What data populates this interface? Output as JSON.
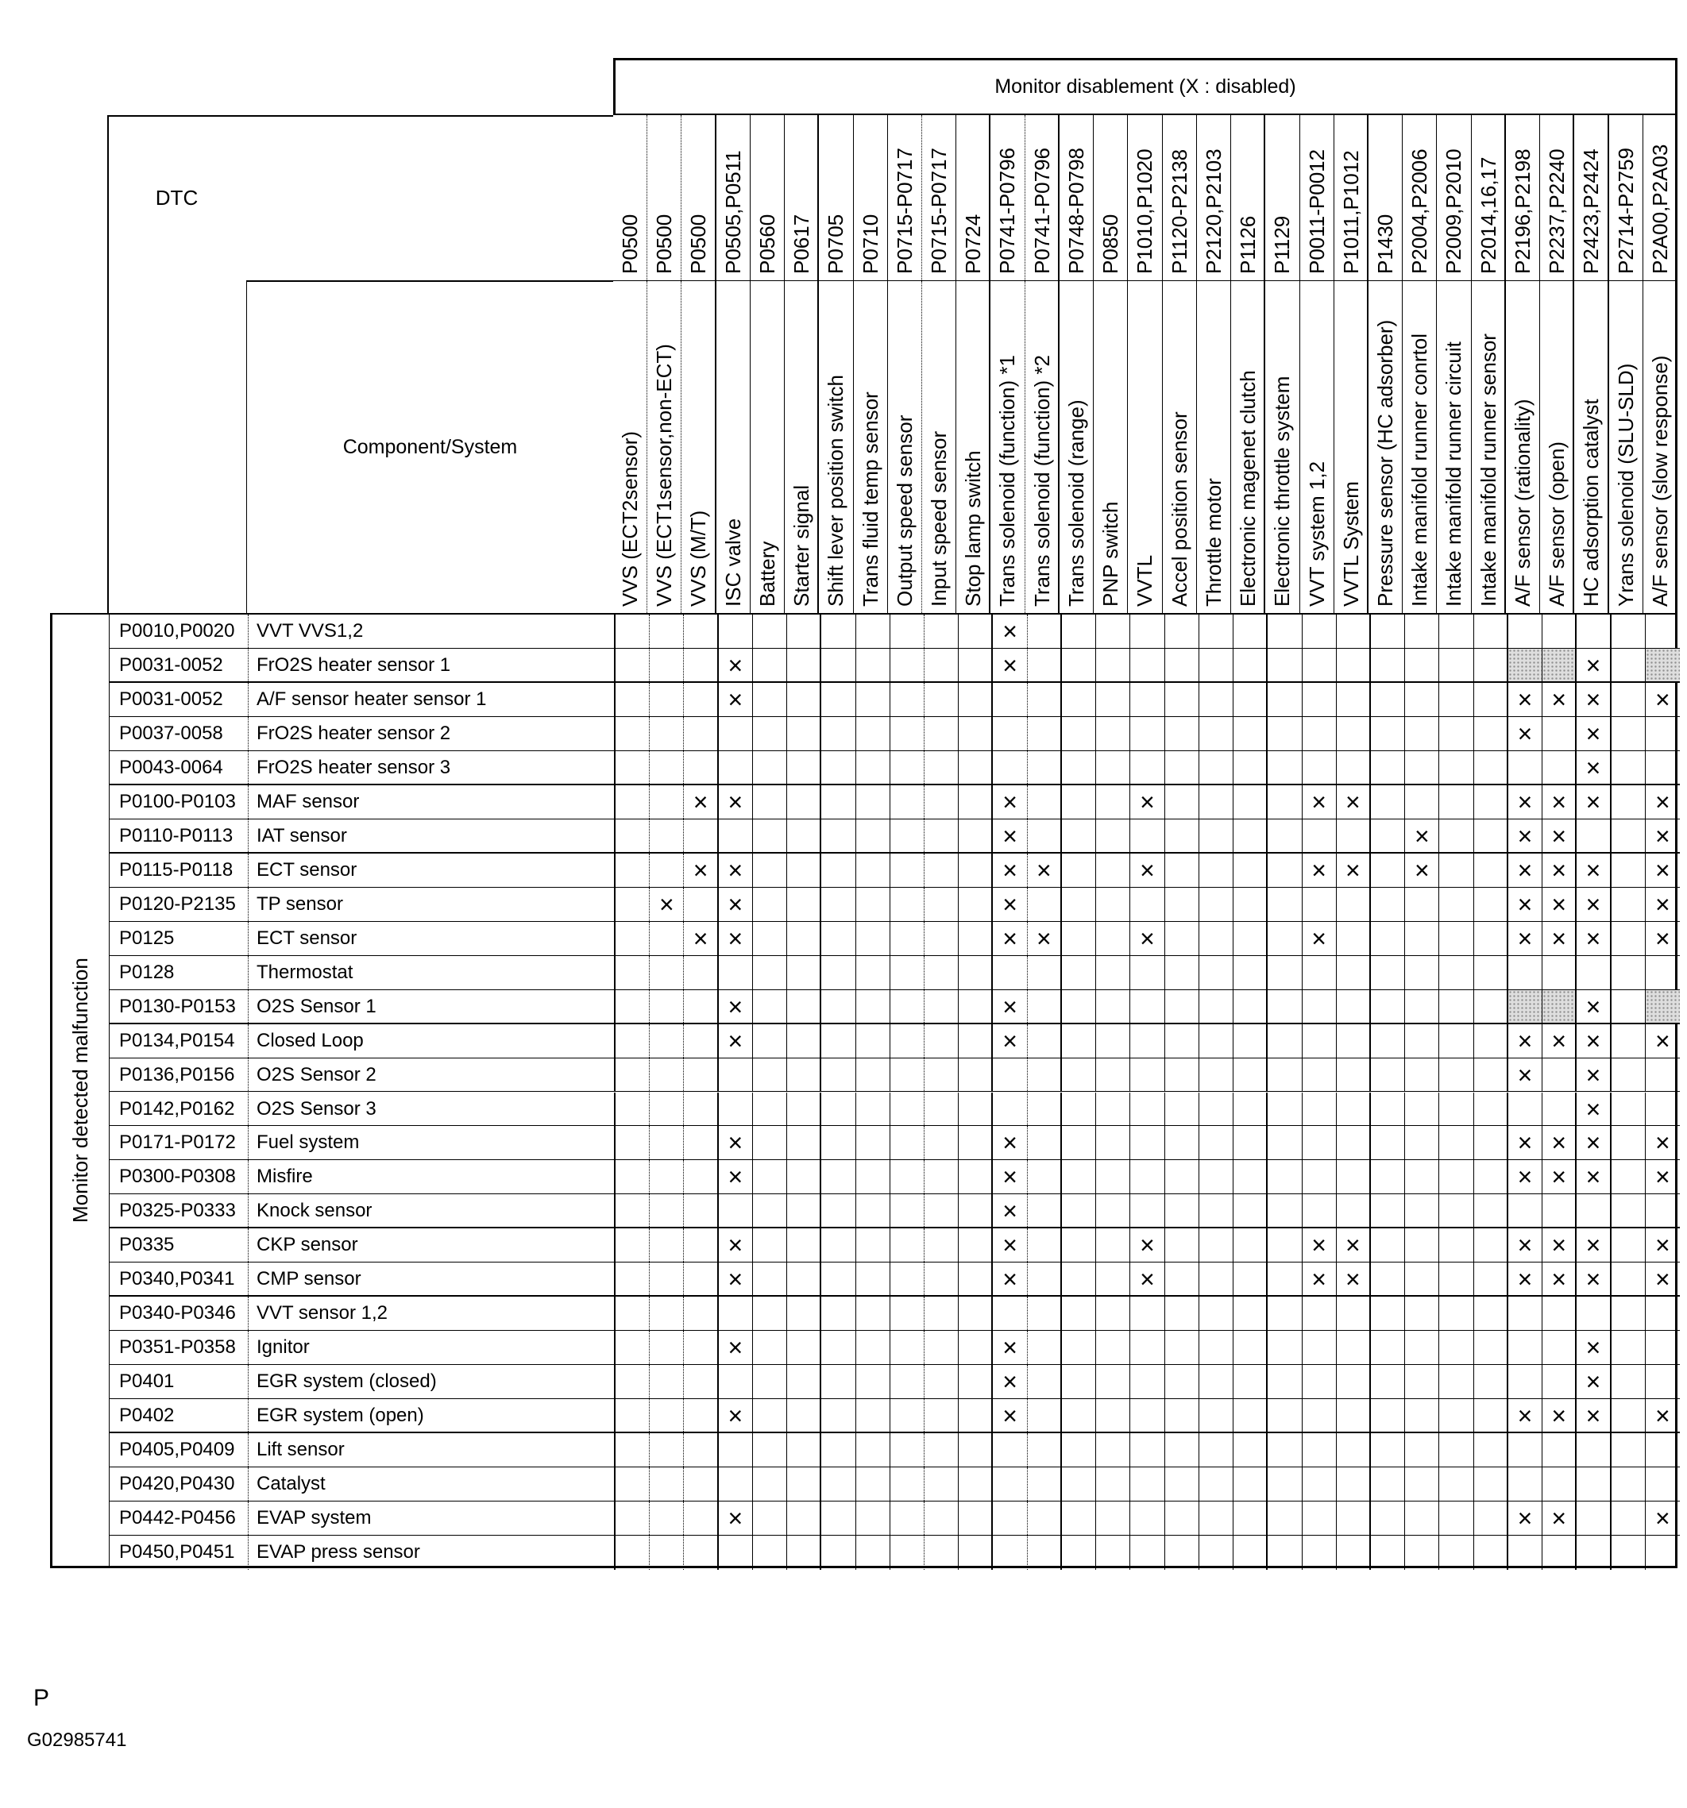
{
  "header": {
    "title": "Monitor disablement (X : disabled)",
    "dtc_label": "DTC",
    "component_label": "Component/System"
  },
  "side_label": "Monitor detected malfunction",
  "marks": {
    "x_symbol": "×"
  },
  "colors": {
    "line": "#000000",
    "shaded_cell": "#dedede",
    "background": "#ffffff"
  },
  "footer": {
    "page_marker": "P",
    "figure_id": "G02985741"
  },
  "columns": [
    {
      "code": "P0500",
      "name": "VVS (ECT2sensor)"
    },
    {
      "code": "P0500",
      "name": "VVS (ECT1sensor,non-ECT)"
    },
    {
      "code": "P0500",
      "name": "VVS (M/T)"
    },
    {
      "code": "P0505,P0511",
      "name": "ISC valve"
    },
    {
      "code": "P0560",
      "name": "Battery"
    },
    {
      "code": "P0617",
      "name": "Starter signal"
    },
    {
      "code": "P0705",
      "name": "Shift lever position switch"
    },
    {
      "code": "P0710",
      "name": "Trans fluid temp sensor"
    },
    {
      "code": "P0715-P0717",
      "name": "Output speed sensor"
    },
    {
      "code": "P0715-P0717",
      "name": "Input speed sensor"
    },
    {
      "code": "P0724",
      "name": "Stop lamp switch"
    },
    {
      "code": "P0741-P0796",
      "name": "Trans solenoid (function) *1"
    },
    {
      "code": "P0741-P0796",
      "name": "Trans solenoid (function) *2"
    },
    {
      "code": "P0748-P0798",
      "name": "Trans solenoid (range)"
    },
    {
      "code": "P0850",
      "name": "PNP switch"
    },
    {
      "code": "P1010,P1020",
      "name": "VVTL"
    },
    {
      "code": "P1120-P2138",
      "name": "Accel position sensor"
    },
    {
      "code": "P2120,P2103",
      "name": "Throttle motor"
    },
    {
      "code": "P1126",
      "name": "Electronic magenet clutch"
    },
    {
      "code": "P1129",
      "name": "Electronic throttle system"
    },
    {
      "code": "P0011-P0012",
      "name": "VVT system 1,2"
    },
    {
      "code": "P1011,P1012",
      "name": "VVTL System"
    },
    {
      "code": "P1430",
      "name": "Pressure sensor (HC adsorber)"
    },
    {
      "code": "P2004,P2006",
      "name": "Intake manifold runner conrtol"
    },
    {
      "code": "P2009,P2010",
      "name": "Intake manifold runner circuit"
    },
    {
      "code": "P2014,16,17",
      "name": "Intake manifold runner sensor"
    },
    {
      "code": "P2196,P2198",
      "name": "A/F sensor (rationality)"
    },
    {
      "code": "P2237,P2240",
      "name": "A/F sensor (open)"
    },
    {
      "code": "P2423,P2424",
      "name": "HC adsorption catalyst"
    },
    {
      "code": "P2714-P2759",
      "name": "Yrans solenoid (SLU-SLD)"
    },
    {
      "code": "P2A00,P2A03",
      "name": "A/F sensor (slow response)"
    }
  ],
  "rows": [
    {
      "dtc": "P0010,P0020",
      "component": "VVT VVS1,2",
      "x_cols": [
        12
      ],
      "shaded_cols": []
    },
    {
      "dtc": "P0031-0052",
      "component": "FrO2S heater sensor 1",
      "x_cols": [
        4,
        12,
        29
      ],
      "shaded_cols": [
        27,
        28,
        31
      ]
    },
    {
      "dtc": "P0031-0052",
      "component": "A/F sensor heater sensor 1",
      "x_cols": [
        4,
        27,
        28,
        29,
        31
      ],
      "shaded_cols": []
    },
    {
      "dtc": "P0037-0058",
      "component": "FrO2S heater sensor 2",
      "x_cols": [
        27,
        29
      ],
      "shaded_cols": []
    },
    {
      "dtc": "P0043-0064",
      "component": "FrO2S heater sensor 3",
      "x_cols": [
        29
      ],
      "shaded_cols": []
    },
    {
      "dtc": "P0100-P0103",
      "component": "MAF sensor",
      "x_cols": [
        3,
        4,
        12,
        16,
        21,
        22,
        27,
        28,
        29,
        31
      ],
      "shaded_cols": []
    },
    {
      "dtc": "P0110-P0113",
      "component": "IAT sensor",
      "x_cols": [
        12,
        24,
        27,
        28,
        31
      ],
      "shaded_cols": []
    },
    {
      "dtc": "P0115-P0118",
      "component": "ECT sensor",
      "x_cols": [
        3,
        4,
        12,
        13,
        16,
        21,
        22,
        24,
        27,
        28,
        29,
        31
      ],
      "shaded_cols": []
    },
    {
      "dtc": "P0120-P2135",
      "component": "TP sensor",
      "x_cols": [
        2,
        4,
        12,
        27,
        28,
        29,
        31
      ],
      "shaded_cols": []
    },
    {
      "dtc": "P0125",
      "component": "ECT sensor",
      "x_cols": [
        3,
        4,
        12,
        13,
        16,
        21,
        27,
        28,
        29,
        31
      ],
      "shaded_cols": []
    },
    {
      "dtc": "P0128",
      "component": "Thermostat",
      "x_cols": [],
      "shaded_cols": []
    },
    {
      "dtc": "P0130-P0153",
      "component": "O2S Sensor 1",
      "x_cols": [
        4,
        12,
        29
      ],
      "shaded_cols": [
        27,
        28,
        31
      ]
    },
    {
      "dtc": "P0134,P0154",
      "component": "Closed Loop",
      "x_cols": [
        4,
        12,
        27,
        28,
        29,
        31
      ],
      "shaded_cols": []
    },
    {
      "dtc": "P0136,P0156",
      "component": "O2S Sensor 2",
      "x_cols": [
        27,
        29
      ],
      "shaded_cols": []
    },
    {
      "dtc": "P0142,P0162",
      "component": "O2S Sensor 3",
      "x_cols": [
        29
      ],
      "shaded_cols": []
    },
    {
      "dtc": "P0171-P0172",
      "component": "Fuel system",
      "x_cols": [
        4,
        12,
        27,
        28,
        29,
        31
      ],
      "shaded_cols": []
    },
    {
      "dtc": "P0300-P0308",
      "component": "Misfire",
      "x_cols": [
        4,
        12,
        27,
        28,
        29,
        31
      ],
      "shaded_cols": []
    },
    {
      "dtc": "P0325-P0333",
      "component": "Knock sensor",
      "x_cols": [
        12
      ],
      "shaded_cols": []
    },
    {
      "dtc": "P0335",
      "component": "CKP sensor",
      "x_cols": [
        4,
        12,
        16,
        21,
        22,
        27,
        28,
        29,
        31
      ],
      "shaded_cols": []
    },
    {
      "dtc": "P0340,P0341",
      "component": "CMP sensor",
      "x_cols": [
        4,
        12,
        16,
        21,
        22,
        27,
        28,
        29,
        31
      ],
      "shaded_cols": []
    },
    {
      "dtc": "P0340-P0346",
      "component": "VVT sensor 1,2",
      "x_cols": [],
      "shaded_cols": []
    },
    {
      "dtc": "P0351-P0358",
      "component": "Ignitor",
      "x_cols": [
        4,
        12,
        29
      ],
      "shaded_cols": []
    },
    {
      "dtc": "P0401",
      "component": "EGR system (closed)",
      "x_cols": [
        12,
        29
      ],
      "shaded_cols": []
    },
    {
      "dtc": "P0402",
      "component": "EGR system (open)",
      "x_cols": [
        4,
        12,
        27,
        28,
        29,
        31
      ],
      "shaded_cols": []
    },
    {
      "dtc": "P0405,P0409",
      "component": "Lift sensor",
      "x_cols": [],
      "shaded_cols": []
    },
    {
      "dtc": "P0420,P0430",
      "component": "Catalyst",
      "x_cols": [],
      "shaded_cols": []
    },
    {
      "dtc": "P0442-P0456",
      "component": "EVAP system",
      "x_cols": [
        4,
        27,
        28,
        31
      ],
      "shaded_cols": []
    },
    {
      "dtc": "P0450,P0451",
      "component": "EVAP press sensor",
      "x_cols": [],
      "shaded_cols": []
    }
  ]
}
